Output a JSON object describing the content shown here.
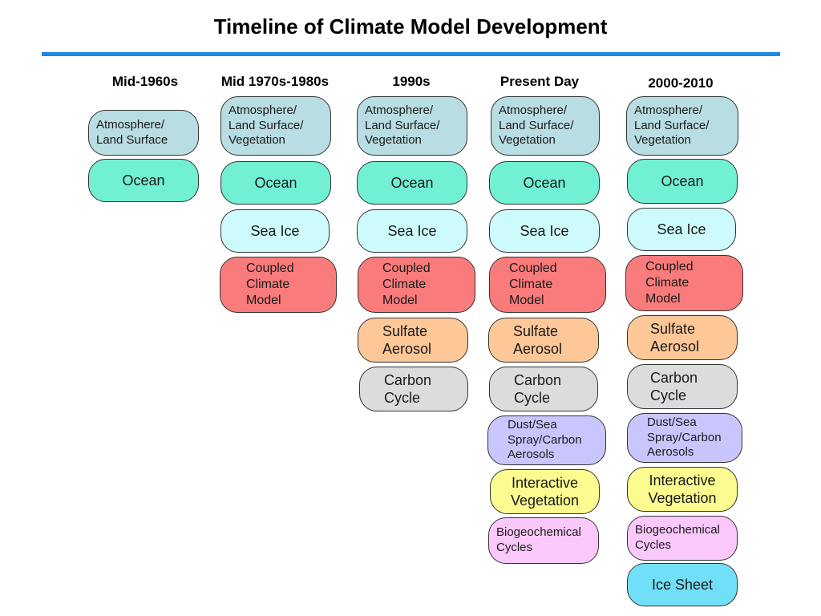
{
  "title": "Timeline of Climate Model Development",
  "columns": [
    {
      "label": "Mid-1960s"
    },
    {
      "label": "Mid 1970s-1980s"
    },
    {
      "label": "1990s"
    },
    {
      "label": "Present Day"
    },
    {
      "label": "2000-2010"
    }
  ],
  "components": {
    "atm1": "Atmosphere/\nLand Surface",
    "atm": "Atmosphere/\nLand Surface/\nVegetation",
    "ocean": "Ocean",
    "seaice": "Sea Ice",
    "ccm": "Coupled\nClimate\nModel",
    "sulfate": "Sulfate\nAerosol",
    "carbon": "Carbon\nCycle",
    "dust": "Dust/Sea\nSpray/Carbon\nAerosols",
    "veg": "Interactive\nVegetation",
    "bio": "Biogeochemical\nCycles",
    "icesheet": "Ice Sheet"
  },
  "colors": {
    "atmosphere": "#b8dde2",
    "ocean": "#72f0d3",
    "sea_ice": "#cdfbfb",
    "coupled_model": "#fa7b7b",
    "sulfate": "#fdc797",
    "carbon": "#dcdcdc",
    "dust": "#c8c6fd",
    "vegetation": "#fbfb8f",
    "biogeochemical": "#fbc8fb",
    "ice_sheet": "#72dff9",
    "rule": "#1e88e5"
  }
}
